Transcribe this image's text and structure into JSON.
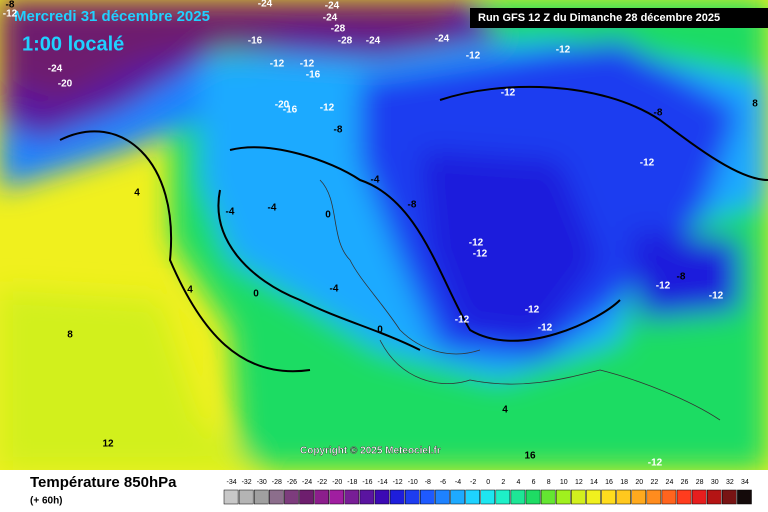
{
  "header": {
    "date": "Mercredi 31 décembre 2025",
    "time": "1:00 localé",
    "run": "Run GFS 12 Z du Dimanche 28 décembre 2025"
  },
  "footer": {
    "title": "Température 850hPa",
    "lead": "(+ 60h)",
    "copyright": "Copyright © 2025 Meteociel.fr"
  },
  "map_labels": [
    -8,
    -12,
    -24,
    -20,
    -24,
    -16,
    -24,
    -24,
    -28,
    -28,
    -24,
    -24,
    -12,
    -12,
    -12,
    -12,
    -12,
    -16,
    -20,
    -16,
    -12,
    -8,
    -8,
    -12,
    -4,
    -4,
    -4,
    0,
    -8,
    -12,
    -12,
    -12,
    -12,
    -12,
    -8,
    -12,
    -12,
    4,
    8,
    12,
    16,
    -12,
    4,
    0,
    4,
    0,
    -4,
    8
  ],
  "legend": {
    "values": [
      -34,
      -32,
      -30,
      -28,
      -26,
      -24,
      -22,
      -20,
      -18,
      -16,
      -14,
      -12,
      -10,
      -8,
      -6,
      -4,
      -2,
      0,
      2,
      4,
      6,
      8,
      10,
      12,
      14,
      16,
      18,
      20,
      22,
      24,
      26,
      28,
      30,
      32,
      34
    ],
    "colors": [
      "#c8c8c8",
      "#b4b4b4",
      "#a0a0a0",
      "#8c6e8c",
      "#7d3c7d",
      "#6e1e6e",
      "#8c1e8c",
      "#a01ea0",
      "#781e96",
      "#5a14a0",
      "#3c0ab4",
      "#1e1edc",
      "#1e3cf0",
      "#1e5aff",
      "#1e82ff",
      "#1eaaff",
      "#1ed2ff",
      "#1ee6f0",
      "#1ef0c8",
      "#1ee696",
      "#1edc64",
      "#64e632",
      "#a0f01e",
      "#d2f01e",
      "#f0f01e",
      "#ffdc1e",
      "#ffc81e",
      "#ffaa1e",
      "#ff8c1e",
      "#ff641e",
      "#ff3c1e",
      "#e61e1e",
      "#b41414",
      "#781414",
      "#140a0a"
    ]
  }
}
